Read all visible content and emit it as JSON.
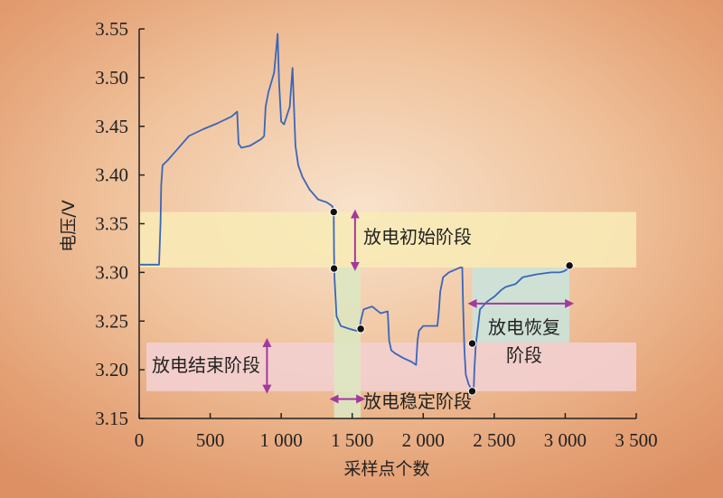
{
  "chart_data": {
    "type": "line",
    "xlabel": "采样点个数",
    "ylabel": "电压/V",
    "xlim": [
      0,
      3500
    ],
    "ylim": [
      3.15,
      3.55
    ],
    "xticks": [
      0,
      500,
      1000,
      1500,
      2000,
      2500,
      3000,
      3500
    ],
    "xtick_labels": [
      "0",
      "500",
      "1 000",
      "1 500",
      "2 000",
      "2 500",
      "3 000",
      "3 500"
    ],
    "yticks": [
      3.15,
      3.2,
      3.25,
      3.3,
      3.35,
      3.4,
      3.45,
      3.5,
      3.55
    ],
    "ytick_labels": [
      "3.15",
      "3.20",
      "3.25",
      "3.30",
      "3.35",
      "3.40",
      "3.45",
      "3.50",
      "3.55"
    ],
    "line_color": "#3a66b8",
    "series": [
      {
        "x": [
          0,
          80,
          140,
          150,
          155,
          165,
          200,
          260,
          350,
          450,
          550,
          650,
          690,
          700,
          720,
          780,
          860,
          880,
          890,
          910,
          950,
          975,
          985,
          1000,
          1020,
          1060,
          1080,
          1090,
          1100,
          1120,
          1150,
          1200,
          1260,
          1320,
          1360,
          1370,
          1372,
          1375,
          1390,
          1420,
          1480,
          1530,
          1550,
          1560,
          1580,
          1640,
          1700,
          1750,
          1760,
          1775,
          1800,
          1860,
          1920,
          1950,
          1960,
          1970,
          2000,
          2060,
          2100,
          2110,
          2120,
          2140,
          2180,
          2230,
          2260,
          2275,
          2280,
          2290,
          2300,
          2320,
          2340,
          2355,
          2360,
          2370,
          2400,
          2450,
          2500,
          2550,
          2580,
          2650,
          2700,
          2800,
          2900,
          2960,
          2990,
          3020,
          3030,
          3040
        ],
        "y": [
          3.308,
          3.308,
          3.308,
          3.35,
          3.39,
          3.41,
          3.415,
          3.425,
          3.44,
          3.447,
          3.453,
          3.46,
          3.465,
          3.432,
          3.428,
          3.43,
          3.437,
          3.44,
          3.47,
          3.485,
          3.505,
          3.545,
          3.495,
          3.455,
          3.452,
          3.47,
          3.51,
          3.47,
          3.43,
          3.41,
          3.398,
          3.385,
          3.375,
          3.372,
          3.368,
          3.36,
          3.32,
          3.295,
          3.255,
          3.245,
          3.242,
          3.24,
          3.24,
          3.25,
          3.262,
          3.265,
          3.258,
          3.26,
          3.23,
          3.22,
          3.217,
          3.212,
          3.208,
          3.205,
          3.23,
          3.24,
          3.245,
          3.245,
          3.245,
          3.26,
          3.28,
          3.295,
          3.3,
          3.303,
          3.305,
          3.305,
          3.27,
          3.22,
          3.195,
          3.185,
          3.18,
          3.178,
          3.2,
          3.225,
          3.262,
          3.27,
          3.275,
          3.282,
          3.285,
          3.288,
          3.295,
          3.298,
          3.3,
          3.3,
          3.301,
          3.304,
          3.306,
          3.307
        ]
      }
    ],
    "bands": [
      {
        "label": "放电初始阶段",
        "color": "#f8ebb6"
      },
      {
        "label": "放电稳定阶段",
        "color": "#dce7c2"
      },
      {
        "label": "放电恢复阶段",
        "color": "#c9e4dc"
      },
      {
        "label": "放电结束阶段",
        "color": "#f2d0d2"
      }
    ],
    "arrow_color": "#a23a9c",
    "markers": [
      {
        "x": 1370,
        "y": 3.362
      },
      {
        "x": 1372,
        "y": 3.304
      },
      {
        "x": 1560,
        "y": 3.242
      },
      {
        "x": 2345,
        "y": 3.227
      },
      {
        "x": 2345,
        "y": 3.178
      },
      {
        "x": 3030,
        "y": 3.307
      }
    ]
  }
}
